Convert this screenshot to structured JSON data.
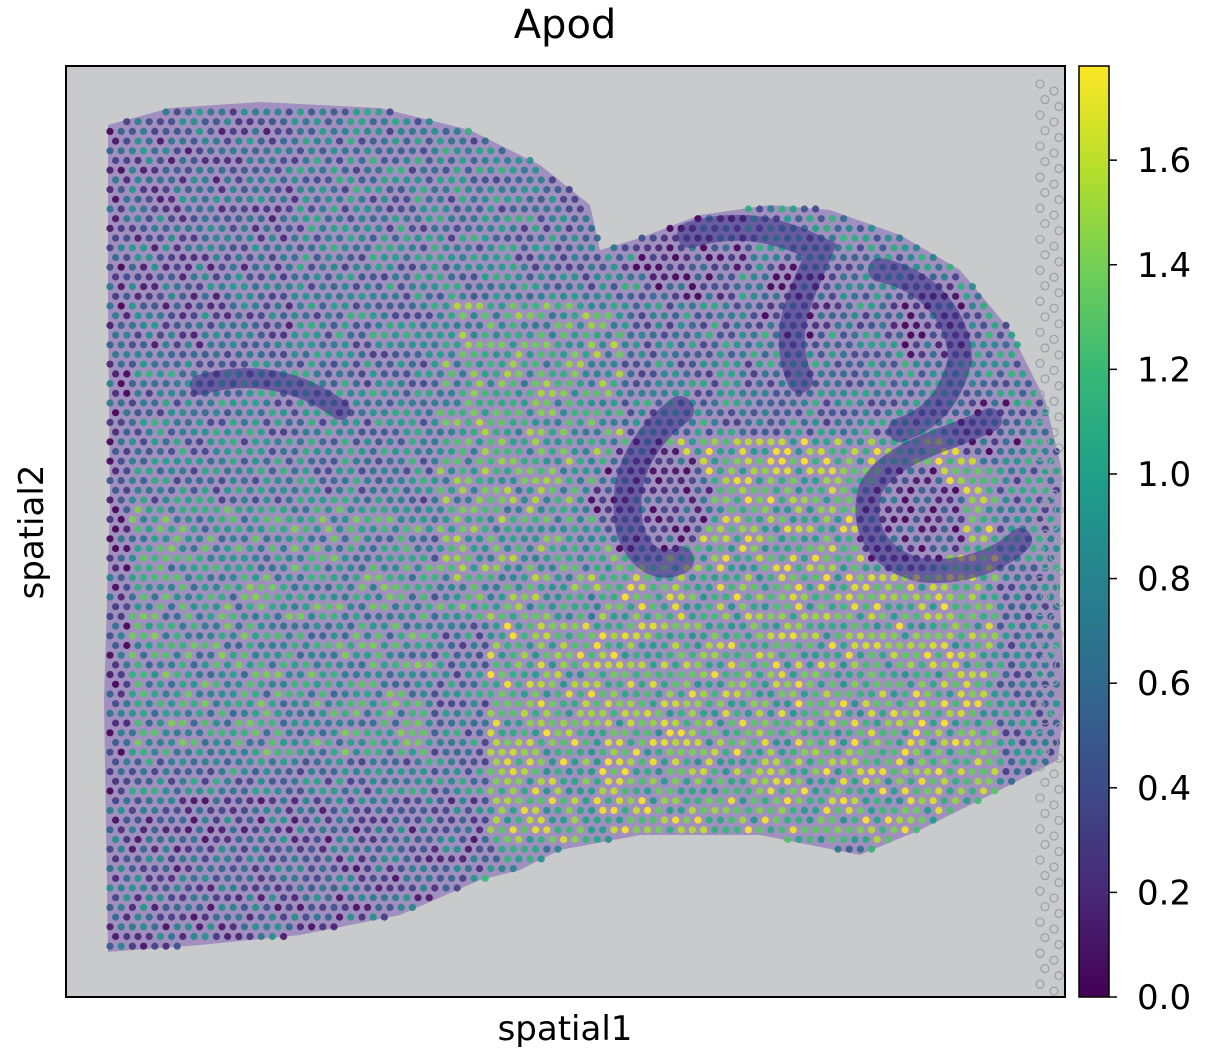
{
  "chart_data": {
    "type": "scatter",
    "title": "Apod",
    "xlabel": "spatial1",
    "ylabel": "spatial2",
    "colorbar": {
      "colormap": "viridis",
      "range": [
        0.0,
        1.78
      ],
      "ticks": [
        {
          "value": 0.0,
          "label": "0.0"
        },
        {
          "value": 0.2,
          "label": "0.2"
        },
        {
          "value": 0.4,
          "label": "0.4"
        },
        {
          "value": 0.6,
          "label": "0.6"
        },
        {
          "value": 0.8,
          "label": "0.8"
        },
        {
          "value": 1.0,
          "label": "1.0"
        },
        {
          "value": 1.2,
          "label": "1.2"
        },
        {
          "value": 1.4,
          "label": "1.4"
        },
        {
          "value": 1.6,
          "label": "1.6"
        }
      ],
      "colors": [
        "#440154",
        "#482878",
        "#3e4989",
        "#31688e",
        "#26828e",
        "#1f9e89",
        "#35b779",
        "#6ece58",
        "#b5de2b",
        "#fde725"
      ]
    },
    "background": "#c9cacb",
    "tissue_color": "#9a86bd",
    "dark_layer_color": "#3a2f86",
    "grid": false,
    "legend": "none"
  }
}
